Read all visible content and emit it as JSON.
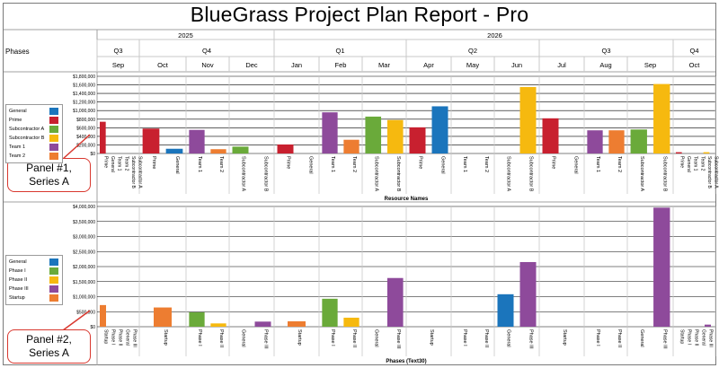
{
  "report": {
    "title": "BlueGrass Project Plan Report - Pro"
  },
  "header": {
    "phases_label": "Phases",
    "years": [
      "2025",
      "2026"
    ],
    "quarters": [
      "Q3",
      "Q4",
      "Q1",
      "Q2",
      "Q3",
      "Q4"
    ],
    "months": [
      "Sep",
      "Oct",
      "Nov",
      "Dec",
      "Jan",
      "Feb",
      "Mar",
      "Apr",
      "May",
      "Jun",
      "Jul",
      "Aug",
      "Sep",
      "Oct"
    ]
  },
  "callouts": {
    "panel1": [
      "Panel #1,",
      "Series A"
    ],
    "panel2": [
      "Panel #2,",
      "Series A"
    ]
  },
  "colors": {
    "General": "#1b75bc",
    "Prime": "#c8202f",
    "Subcontractor A": "#6aaa3a",
    "Subcontractor B": "#f6b90f",
    "Team 1": "#8e4a9b",
    "Team 2": "#ed7d31",
    "Phase I": "#6aaa3a",
    "Phase II": "#f6b90f",
    "Phase III": "#8e4a9b",
    "Startup": "#ed7d31",
    "grid": "#000000"
  },
  "chart_data": [
    {
      "type": "bar",
      "panel": "Panel #1",
      "xlabel": "Resource Names",
      "ylabel": "",
      "ylim": [
        0,
        1800000
      ],
      "y_ticks": [
        "$0",
        "$200,000",
        "$400,000",
        "$600,000",
        "$800,000",
        "$1,000,000",
        "$1,200,000",
        "$1,400,000",
        "$1,600,000",
        "$1,800,000"
      ],
      "legend": [
        "General",
        "Prime",
        "Subcontractor A",
        "Subcontractor B",
        "Team 1",
        "Team 2"
      ],
      "categories": [
        "Sep",
        "Oct",
        "Nov",
        "Dec",
        "Jan",
        "Feb",
        "Mar",
        "Apr",
        "May",
        "Jun",
        "Jul",
        "Aug",
        "Sep",
        "Oct"
      ],
      "groups": [
        {
          "period": "Sep",
          "items": [
            {
              "name": "Prime",
              "value": 740000
            },
            {
              "name": "General",
              "value": 0
            },
            {
              "name": "Team 1",
              "value": 0
            },
            {
              "name": "Team 2",
              "value": 0
            },
            {
              "name": "Subcontractor B",
              "value": 0
            },
            {
              "name": "Subcontractor A",
              "value": 0
            }
          ]
        },
        {
          "period": "Oct",
          "items": [
            {
              "name": "Prime",
              "value": 580000
            },
            {
              "name": "General",
              "value": 110000
            }
          ]
        },
        {
          "period": "Nov",
          "items": [
            {
              "name": "Team 1",
              "value": 550000
            },
            {
              "name": "Team 2",
              "value": 100000
            }
          ]
        },
        {
          "period": "Dec",
          "items": [
            {
              "name": "Subcontractor A",
              "value": 160000
            },
            {
              "name": "Subcontractor B",
              "value": 0
            }
          ]
        },
        {
          "period": "Jan",
          "items": [
            {
              "name": "Prime",
              "value": 210000
            },
            {
              "name": "General",
              "value": 0
            }
          ]
        },
        {
          "period": "Feb",
          "items": [
            {
              "name": "Team 1",
              "value": 960000
            },
            {
              "name": "Team 2",
              "value": 320000
            }
          ]
        },
        {
          "period": "Mar",
          "items": [
            {
              "name": "Subcontractor A",
              "value": 860000
            },
            {
              "name": "Subcontractor B",
              "value": 780000
            }
          ]
        },
        {
          "period": "Apr",
          "items": [
            {
              "name": "Prime",
              "value": 610000
            },
            {
              "name": "General",
              "value": 1100000
            }
          ]
        },
        {
          "period": "May",
          "items": [
            {
              "name": "Team 1",
              "value": 0
            },
            {
              "name": "Team 2",
              "value": 0
            }
          ]
        },
        {
          "period": "Jun",
          "items": [
            {
              "name": "Subcontractor A",
              "value": 0
            },
            {
              "name": "Subcontractor B",
              "value": 1550000
            }
          ]
        },
        {
          "period": "Jul",
          "items": [
            {
              "name": "Prime",
              "value": 820000
            },
            {
              "name": "General",
              "value": 0
            }
          ]
        },
        {
          "period": "Aug",
          "items": [
            {
              "name": "Team 1",
              "value": 540000
            },
            {
              "name": "Team 2",
              "value": 540000
            }
          ]
        },
        {
          "period": "Sep",
          "items": [
            {
              "name": "Subcontractor A",
              "value": 560000
            },
            {
              "name": "Subcontractor B",
              "value": 1620000
            }
          ]
        },
        {
          "period": "Oct",
          "items": [
            {
              "name": "Prime",
              "value": 30000
            },
            {
              "name": "General",
              "value": 0
            },
            {
              "name": "Team 1",
              "value": 0
            },
            {
              "name": "Team 2",
              "value": 0
            },
            {
              "name": "Subcontractor B",
              "value": 30000
            },
            {
              "name": "Subcontractor A",
              "value": 0
            }
          ]
        }
      ]
    },
    {
      "type": "bar",
      "panel": "Panel #2",
      "xlabel": "Phases (Text30)",
      "ylabel": "",
      "ylim": [
        0,
        4000000
      ],
      "y_ticks": [
        "$0",
        "$500,000",
        "$1,000,000",
        "$1,500,000",
        "$2,000,000",
        "$2,500,000",
        "$3,000,000",
        "$3,500,000",
        "$4,000,000"
      ],
      "legend": [
        "General",
        "Phase I",
        "Phase II",
        "Phase III",
        "Startup"
      ],
      "categories": [
        "Sep",
        "Oct",
        "Nov",
        "Dec",
        "Jan",
        "Feb",
        "Mar",
        "Apr",
        "May",
        "Jun",
        "Jul",
        "Aug",
        "Sep",
        "Oct"
      ],
      "groups": [
        {
          "period": "Sep",
          "items": [
            {
              "name": "Startup",
              "value": 720000
            },
            {
              "name": "Phase I",
              "value": 0
            },
            {
              "name": "Phase II",
              "value": 0
            },
            {
              "name": "General",
              "value": 0
            },
            {
              "name": "Phase III",
              "value": 0
            }
          ]
        },
        {
          "period": "Oct",
          "items": [
            {
              "name": "Startup",
              "value": 640000
            }
          ]
        },
        {
          "period": "Nov",
          "items": [
            {
              "name": "Phase I",
              "value": 480000
            },
            {
              "name": "Phase II",
              "value": 110000
            }
          ]
        },
        {
          "period": "Dec",
          "items": [
            {
              "name": "General",
              "value": 0
            },
            {
              "name": "Phase III",
              "value": 170000
            }
          ]
        },
        {
          "period": "Jan",
          "items": [
            {
              "name": "Startup",
              "value": 180000
            }
          ]
        },
        {
          "period": "Feb",
          "items": [
            {
              "name": "Phase I",
              "value": 930000
            },
            {
              "name": "Phase II",
              "value": 300000
            }
          ]
        },
        {
          "period": "Mar",
          "items": [
            {
              "name": "General",
              "value": 0
            },
            {
              "name": "Phase III",
              "value": 1620000
            }
          ]
        },
        {
          "period": "Apr",
          "items": [
            {
              "name": "Startup",
              "value": 0
            }
          ]
        },
        {
          "period": "May",
          "items": [
            {
              "name": "Phase I",
              "value": 0
            },
            {
              "name": "Phase II",
              "value": 0
            }
          ]
        },
        {
          "period": "Jun",
          "items": [
            {
              "name": "General",
              "value": 1080000
            },
            {
              "name": "Phase III",
              "value": 2150000
            }
          ]
        },
        {
          "period": "Jul",
          "items": [
            {
              "name": "Startup",
              "value": 0
            }
          ]
        },
        {
          "period": "Aug",
          "items": [
            {
              "name": "Phase I",
              "value": 0
            },
            {
              "name": "Phase II",
              "value": 0
            }
          ]
        },
        {
          "period": "Sep",
          "items": [
            {
              "name": "General",
              "value": 0
            },
            {
              "name": "Phase III",
              "value": 3960000
            }
          ]
        },
        {
          "period": "Oct",
          "items": [
            {
              "name": "Startup",
              "value": 0
            },
            {
              "name": "Phase I",
              "value": 0
            },
            {
              "name": "Phase II",
              "value": 0
            },
            {
              "name": "General",
              "value": 0
            },
            {
              "name": "Phase III",
              "value": 70000
            }
          ]
        }
      ]
    }
  ]
}
